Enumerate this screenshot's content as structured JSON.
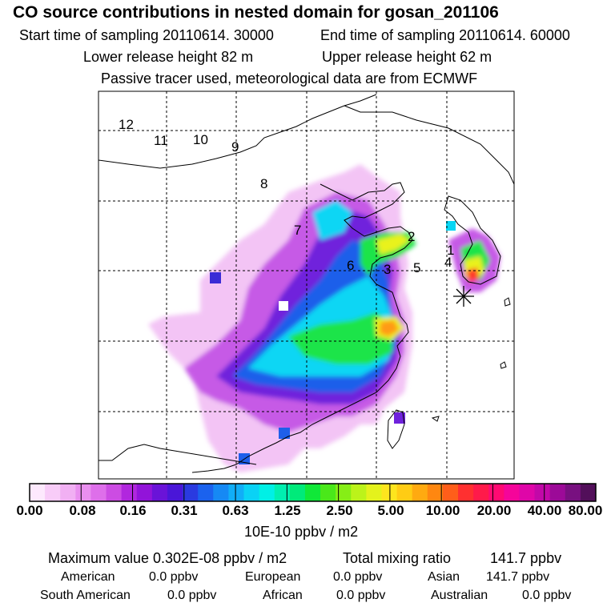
{
  "header": {
    "title": "CO  source contributions in nested domain for gosan_201106",
    "start_label": "Start time of sampling 20110614. 30000",
    "end_label": "End time of sampling 20110614. 60000",
    "lower_label": "Lower release height   82 m",
    "upper_label": "Upper release height   62 m",
    "tracer_label": "Passive tracer used, meteorological data are from ECMWF"
  },
  "map": {
    "region_labels": [
      "12",
      "11",
      "10",
      "9",
      "8",
      "7",
      "2",
      "1",
      "6",
      "3",
      "5",
      "4"
    ],
    "receptor_marker": "asterisk-receptor"
  },
  "colorbar": {
    "ticks": [
      "0.00",
      "0.08",
      "0.16",
      "0.31",
      "0.63",
      "1.25",
      "2.50",
      "5.00",
      "10.00",
      "20.00",
      "40.00",
      "80.00"
    ],
    "units": "10E-10 ppbv / m2",
    "colors": [
      "#fde9fd",
      "#f8ccf8",
      "#f1b0f3",
      "#e98fef",
      "#de6fea",
      "#cc4ce3",
      "#b127de",
      "#9214d9",
      "#6a13d8",
      "#4a16d8",
      "#2a3ae0",
      "#1b62ee",
      "#1689f4",
      "#11aef7",
      "#0ad2f5",
      "#00f0e6",
      "#00efb0",
      "#00ea7a",
      "#10e838",
      "#4ae81a",
      "#86ee16",
      "#bcf31a",
      "#e4f21c",
      "#fde51e",
      "#ffcc14",
      "#ffaa10",
      "#ff8710",
      "#ff5e1a",
      "#ff3030",
      "#ff1a4a",
      "#ff0a72",
      "#f5059a",
      "#df06a8",
      "#c208a8",
      "#9c0a98",
      "#781080",
      "#520f5a"
    ]
  },
  "summary": {
    "max_label": "Maximum value  0.302E-08 ppbv / m2",
    "total_label": "Total mixing ratio",
    "total_value": "141.7 ppbv",
    "rows": [
      [
        {
          "name": "American",
          "value": "0.0 ppbv"
        },
        {
          "name": "European",
          "value": "0.0 ppbv"
        },
        {
          "name": "Asian",
          "value": "141.7 ppbv"
        }
      ],
      [
        {
          "name": "South American",
          "value": "0.0 ppbv"
        },
        {
          "name": "African",
          "value": "0.0 ppbv"
        },
        {
          "name": "Australian",
          "value": "0.0 ppbv"
        }
      ]
    ]
  }
}
